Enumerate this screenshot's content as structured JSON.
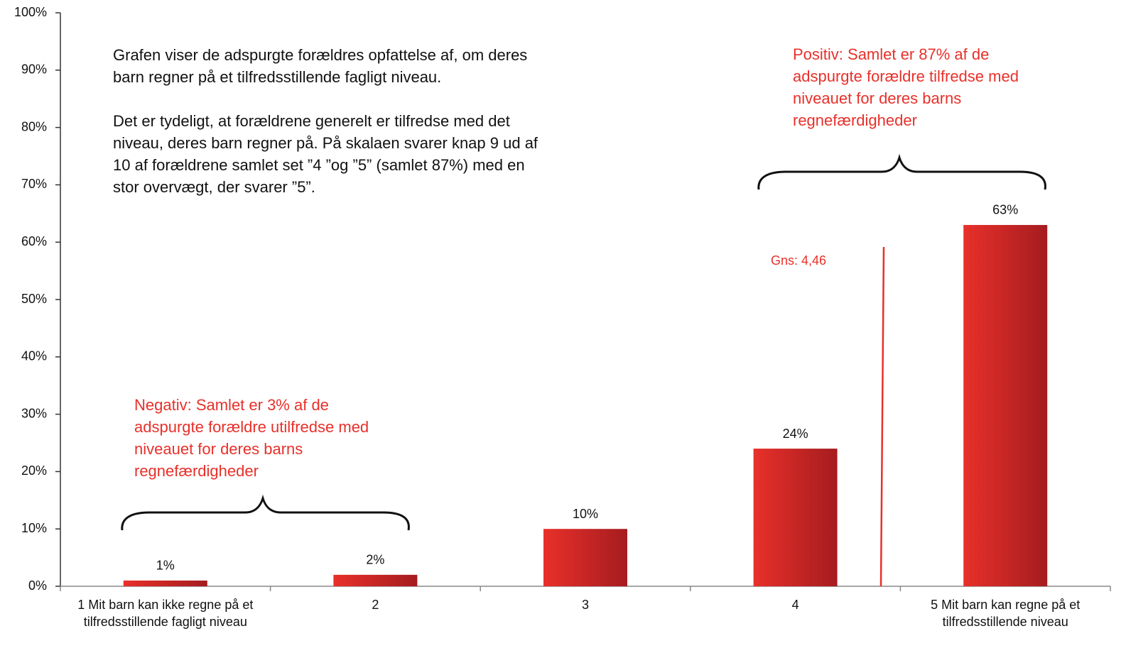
{
  "chart_data": {
    "type": "bar",
    "categories": [
      "1 Mit barn kan ikke regne på et tilfredsstillende fagligt niveau",
      "2",
      "3",
      "4",
      "5 Mit barn kan regne på et tilfredsstillende niveau"
    ],
    "values": [
      1,
      2,
      10,
      24,
      63
    ],
    "value_labels": [
      "1%",
      "2%",
      "10%",
      "24%",
      "63%"
    ],
    "color": "#e8302a",
    "ylim": [
      0,
      100
    ],
    "yticks": [
      {
        "value": 0,
        "label": "0%"
      },
      {
        "value": 10,
        "label": "10%"
      },
      {
        "value": 20,
        "label": "20%"
      },
      {
        "value": 30,
        "label": "30%"
      },
      {
        "value": 40,
        "label": "40%"
      },
      {
        "value": 50,
        "label": "50%"
      },
      {
        "value": 60,
        "label": "60%"
      },
      {
        "value": 70,
        "label": "70%"
      },
      {
        "value": 80,
        "label": "80%"
      },
      {
        "value": 90,
        "label": "90%"
      },
      {
        "value": 100,
        "label": "100%"
      }
    ],
    "grid": false,
    "annotations": {
      "description": [
        "Grafen viser de adspurgte forældres opfattelse af, om deres barn regner på et tilfredsstillende fagligt niveau.",
        "Det er tydeligt, at forældrene generelt er tilfredse med det niveau, deres barn regner på. På skalaen svarer knap 9 ud af 10 af forældrene samlet set ”4 ”og ”5” (samlet 87%) med en stor overvægt, der svarer ”5”."
      ],
      "negative": "Negativ: Samlet er 3% af de adspurgte forældre utilfredse med niveauet for deres barns regnefærdigheder",
      "positive": "Positiv: Samlet er 87% af de adspurgte forældre tilfredse med niveauet for deres barns regnefærdigheder",
      "mean": "Gns: 4,46"
    }
  }
}
